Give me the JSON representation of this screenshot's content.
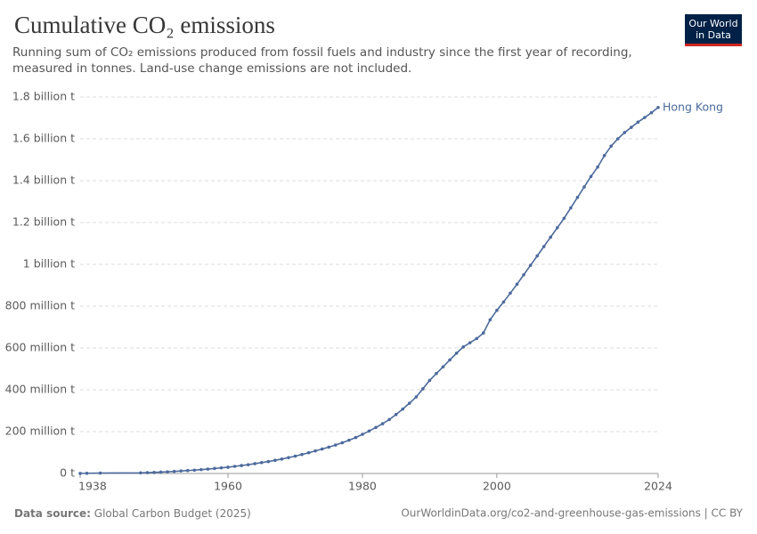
{
  "chart_data": {
    "type": "line",
    "title": "Cumulative CO₂ emissions",
    "subtitle": "Running sum of CO₂ emissions produced from fossil fuels and industry since the first year of recording, measured in tonnes. Land-use change emissions are not included.",
    "logo": [
      "Our World",
      "in Data"
    ],
    "source_label": "Data source:",
    "source": "Global Carbon Budget (2025)",
    "footer_right": "OurWorldinData.org/co2-and-greenhouse-gas-emissions | CC BY",
    "x": [
      1938,
      1939,
      1941,
      1947,
      1948,
      1949,
      1950,
      1951,
      1952,
      1953,
      1954,
      1955,
      1956,
      1957,
      1958,
      1959,
      1960,
      1961,
      1962,
      1963,
      1964,
      1965,
      1966,
      1967,
      1968,
      1969,
      1970,
      1971,
      1972,
      1973,
      1974,
      1975,
      1976,
      1977,
      1978,
      1979,
      1980,
      1981,
      1982,
      1983,
      1984,
      1985,
      1986,
      1987,
      1988,
      1989,
      1990,
      1991,
      1992,
      1993,
      1994,
      1995,
      1996,
      1997,
      1998,
      1999,
      2000,
      2001,
      2002,
      2003,
      2004,
      2005,
      2006,
      2007,
      2008,
      2009,
      2010,
      2011,
      2012,
      2013,
      2014,
      2015,
      2016,
      2017,
      2018,
      2019,
      2020,
      2021,
      2022,
      2023,
      2024
    ],
    "series": [
      {
        "name": "Hong Kong",
        "color": "#4c6a9c",
        "values": [
          500000.0,
          1000000.0,
          2000000.0,
          3000000.0,
          4000000.0,
          5000000.0,
          6500000.0,
          8000000.0,
          10000000.0,
          12000000.0,
          14000000.0,
          16000000.0,
          18500000.0,
          21000000.0,
          24000000.0,
          27000000.0,
          30000000.0,
          34000000.0,
          38000000.0,
          42000000.0,
          47000000.0,
          52000000.0,
          57000000.0,
          63000000.0,
          69000000.0,
          76000000.0,
          83000000.0,
          91000000.0,
          99000000.0,
          108000000.0,
          117000000.0,
          126000000.0,
          136000000.0,
          147000000.0,
          159000000.0,
          172000000.0,
          187000000.0,
          203000000.0,
          220000000.0,
          238000000.0,
          258000000.0,
          282000000.0,
          308000000.0,
          336000000.0,
          366000000.0,
          405000000.0,
          445000000.0,
          478000000.0,
          510000000.0,
          543000000.0,
          575000000.0,
          605000000.0,
          625000000.0,
          645000000.0,
          672000000.0,
          735000000.0,
          780000000.0,
          820000000.0,
          862000000.0,
          905000000.0,
          950000000.0,
          995000000.0,
          1040000000.0,
          1085000000.0,
          1130000000.0,
          1175000000.0,
          1220000000.0,
          1270000000.0,
          1320000000.0,
          1370000000.0,
          1420000000.0,
          1465000000.0,
          1520000000.0,
          1565000000.0,
          1600000000.0,
          1630000000.0,
          1655000000.0,
          1680000000.0,
          1702000000.0,
          1725000000.0,
          1750000000.0
        ]
      }
    ],
    "xlim": [
      1938,
      2024
    ],
    "xticks": [
      1938,
      1960,
      1980,
      2000,
      2024
    ],
    "ylim": [
      0,
      1800000000
    ],
    "yticks": [
      {
        "value": 0,
        "label": "0 t"
      },
      {
        "value": 200000000,
        "label": "200 million t"
      },
      {
        "value": 400000000,
        "label": "400 million t"
      },
      {
        "value": 600000000,
        "label": "600 million t"
      },
      {
        "value": 800000000,
        "label": "800 million t"
      },
      {
        "value": 1000000000,
        "label": "1 billion t"
      },
      {
        "value": 1200000000,
        "label": "1.2 billion t"
      },
      {
        "value": 1400000000,
        "label": "1.4 billion t"
      },
      {
        "value": 1600000000,
        "label": "1.6 billion t"
      },
      {
        "value": 1800000000,
        "label": "1.8 billion t"
      }
    ],
    "grid": true
  }
}
